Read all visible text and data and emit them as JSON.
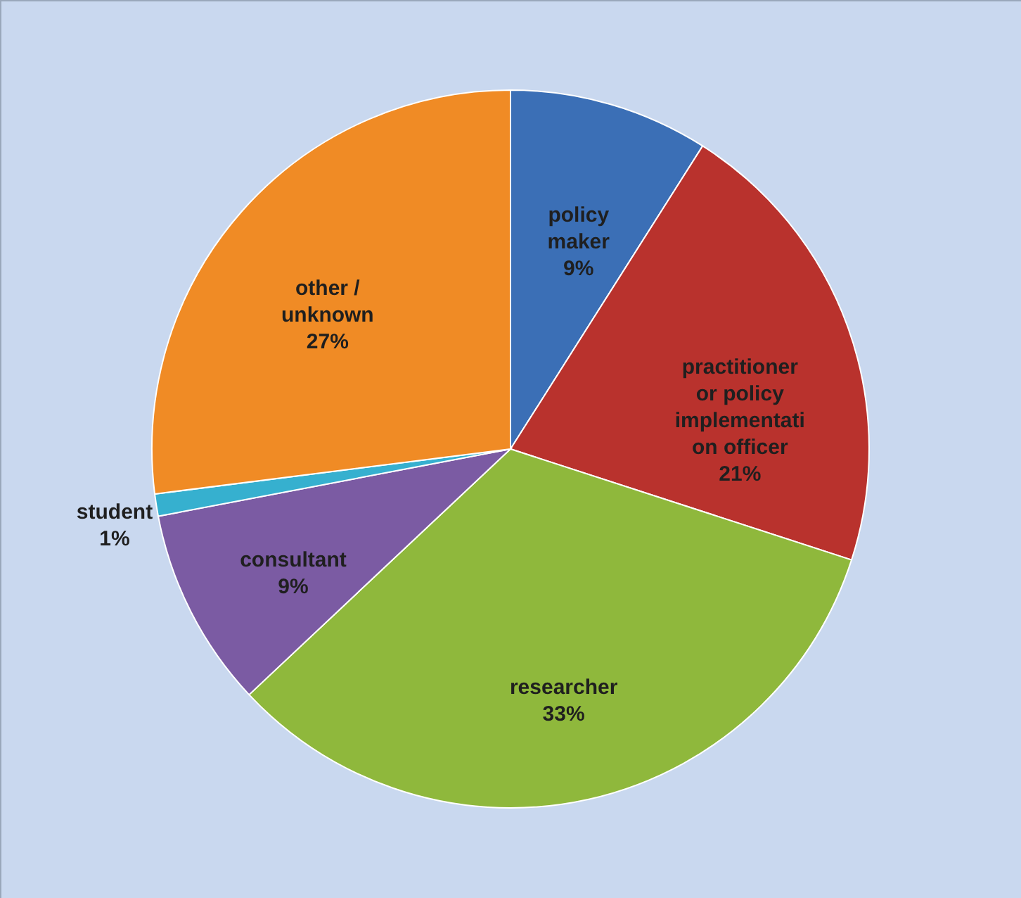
{
  "chart_data": {
    "type": "pie",
    "categories": [
      "policy maker",
      "practitioner or policy implementation officer",
      "researcher",
      "consultant",
      "student",
      "other / unknown"
    ],
    "values": [
      9,
      21,
      33,
      9,
      1,
      27
    ],
    "value_labels": [
      "9%",
      "21%",
      "33%",
      "9%",
      "1%",
      "27%"
    ],
    "colors": [
      "#3b6fb6",
      "#b9322d",
      "#8fb83c",
      "#7b5ba3",
      "#36b0cf",
      "#f08b25"
    ]
  }
}
